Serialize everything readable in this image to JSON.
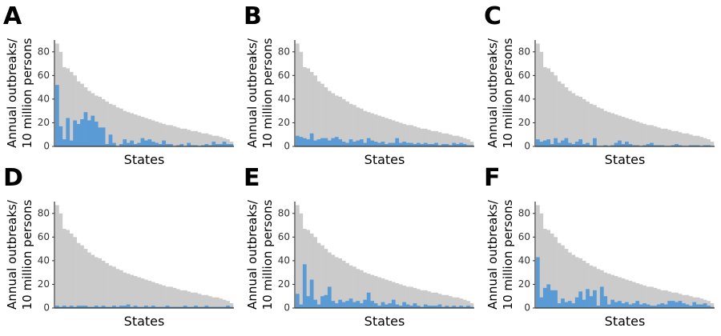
{
  "chart_data": [
    {
      "type": "bar",
      "panel": "A",
      "ylabel": [
        "Annual outbreaks/",
        "10 million persons"
      ],
      "xlabel": "States",
      "ylim": [
        0,
        90
      ],
      "yticks": [
        0,
        20,
        40,
        60,
        80
      ],
      "series": [
        {
          "color": "#cbcbcb",
          "values": [
            87,
            80,
            67,
            66,
            63,
            60,
            55,
            53,
            50,
            47,
            45,
            43,
            42,
            40,
            38,
            36,
            35,
            33,
            32,
            30,
            29,
            28,
            27,
            26,
            25,
            24,
            23,
            22,
            21,
            20,
            19,
            18,
            18,
            17,
            16,
            15,
            15,
            14,
            13,
            13,
            12,
            11,
            11,
            10,
            9,
            9,
            8,
            7,
            6,
            4
          ]
        },
        {
          "color": "#5b9bd5",
          "values": [
            52,
            17,
            6,
            24,
            5,
            22,
            19,
            23,
            29,
            22,
            26,
            21,
            16,
            16,
            2,
            10,
            3,
            0,
            2,
            6,
            3,
            5,
            2,
            3,
            7,
            5,
            6,
            4,
            3,
            2,
            5,
            2,
            2,
            0,
            1,
            2,
            0,
            3,
            1,
            1,
            0,
            1,
            2,
            1,
            4,
            2,
            2,
            4,
            2,
            2
          ]
        }
      ]
    },
    {
      "type": "bar",
      "panel": "B",
      "ylabel": [
        "Annual outbreaks/",
        "10 million persons"
      ],
      "xlabel": "States",
      "ylim": [
        0,
        90
      ],
      "yticks": [
        0,
        20,
        40,
        60,
        80
      ],
      "series": [
        {
          "color": "#cbcbcb",
          "values": [
            87,
            80,
            67,
            66,
            63,
            60,
            55,
            53,
            50,
            47,
            45,
            43,
            42,
            40,
            38,
            36,
            35,
            33,
            32,
            30,
            29,
            28,
            27,
            26,
            25,
            24,
            23,
            22,
            21,
            20,
            19,
            18,
            18,
            17,
            16,
            15,
            15,
            14,
            13,
            13,
            12,
            11,
            11,
            10,
            9,
            9,
            8,
            7,
            6,
            4
          ]
        },
        {
          "color": "#5b9bd5",
          "values": [
            9,
            8,
            7,
            6,
            11,
            5,
            6,
            7,
            7,
            5,
            7,
            8,
            6,
            4,
            3,
            6,
            4,
            5,
            6,
            3,
            7,
            5,
            4,
            3,
            4,
            2,
            3,
            3,
            7,
            3,
            4,
            3,
            3,
            2,
            3,
            2,
            3,
            2,
            2,
            3,
            1,
            2,
            2,
            1,
            3,
            2,
            3,
            2,
            1,
            1
          ]
        }
      ]
    },
    {
      "type": "bar",
      "panel": "C",
      "ylabel": [
        "Annual outbreaks/",
        "10 million persons"
      ],
      "xlabel": "States",
      "ylim": [
        0,
        90
      ],
      "yticks": [
        0,
        20,
        40,
        60,
        80
      ],
      "series": [
        {
          "color": "#cbcbcb",
          "values": [
            87,
            80,
            67,
            66,
            63,
            60,
            55,
            53,
            50,
            47,
            45,
            43,
            42,
            40,
            38,
            36,
            35,
            33,
            32,
            30,
            29,
            28,
            27,
            26,
            25,
            24,
            23,
            22,
            21,
            20,
            19,
            18,
            18,
            17,
            16,
            15,
            15,
            14,
            13,
            13,
            12,
            11,
            11,
            10,
            9,
            9,
            8,
            7,
            6,
            4
          ]
        },
        {
          "color": "#5b9bd5",
          "values": [
            6,
            4,
            5,
            6,
            2,
            7,
            3,
            5,
            7,
            3,
            2,
            4,
            6,
            2,
            3,
            1,
            7,
            0,
            0,
            1,
            0,
            1,
            3,
            5,
            2,
            4,
            2,
            1,
            1,
            0,
            1,
            2,
            3,
            1,
            1,
            1,
            0,
            0,
            1,
            2,
            1,
            0,
            0,
            1,
            1,
            1,
            0,
            1,
            1,
            0
          ]
        }
      ]
    },
    {
      "type": "bar",
      "panel": "D",
      "ylabel": [
        "Annual outbreaks/",
        "10 million persons"
      ],
      "xlabel": "States",
      "ylim": [
        0,
        90
      ],
      "yticks": [
        0,
        20,
        40,
        60,
        80
      ],
      "series": [
        {
          "color": "#cbcbcb",
          "values": [
            87,
            80,
            67,
            66,
            63,
            60,
            55,
            53,
            50,
            47,
            45,
            43,
            42,
            40,
            38,
            36,
            35,
            33,
            32,
            30,
            29,
            28,
            27,
            26,
            25,
            24,
            23,
            22,
            21,
            20,
            19,
            18,
            18,
            17,
            16,
            15,
            15,
            14,
            13,
            13,
            12,
            11,
            11,
            10,
            9,
            9,
            8,
            7,
            6,
            4
          ]
        },
        {
          "color": "#5b9bd5",
          "values": [
            2,
            1,
            2,
            1,
            2,
            1,
            2,
            2,
            2,
            1,
            1,
            2,
            1,
            2,
            1,
            1,
            2,
            1,
            2,
            2,
            3,
            1,
            2,
            1,
            1,
            2,
            1,
            2,
            1,
            1,
            1,
            2,
            1,
            1,
            1,
            1,
            2,
            1,
            1,
            2,
            1,
            1,
            2,
            1,
            1,
            1,
            1,
            1,
            2,
            1
          ]
        }
      ]
    },
    {
      "type": "bar",
      "panel": "E",
      "ylabel": [
        "Annual outbreaks/",
        "10 million persons"
      ],
      "xlabel": "States",
      "ylim": [
        0,
        90
      ],
      "yticks": [
        0,
        20,
        40,
        60,
        80
      ],
      "series": [
        {
          "color": "#cbcbcb",
          "values": [
            87,
            80,
            67,
            66,
            63,
            60,
            55,
            53,
            50,
            47,
            45,
            43,
            42,
            40,
            38,
            36,
            35,
            33,
            32,
            30,
            29,
            28,
            27,
            26,
            25,
            24,
            23,
            22,
            21,
            20,
            19,
            18,
            18,
            17,
            16,
            15,
            15,
            14,
            13,
            13,
            12,
            11,
            11,
            10,
            9,
            9,
            8,
            7,
            6,
            4
          ]
        },
        {
          "color": "#5b9bd5",
          "values": [
            12,
            3,
            37,
            10,
            24,
            7,
            3,
            10,
            11,
            18,
            6,
            4,
            7,
            5,
            6,
            8,
            5,
            6,
            4,
            7,
            13,
            6,
            4,
            2,
            5,
            3,
            4,
            7,
            3,
            2,
            5,
            3,
            2,
            4,
            2,
            1,
            3,
            2,
            2,
            2,
            3,
            1,
            2,
            1,
            2,
            1,
            2,
            1,
            2,
            1
          ]
        }
      ]
    },
    {
      "type": "bar",
      "panel": "F",
      "ylabel": [
        "Annual outbreaks/",
        "10 million persons"
      ],
      "xlabel": "States",
      "ylim": [
        0,
        90
      ],
      "yticks": [
        0,
        20,
        40,
        60,
        80
      ],
      "series": [
        {
          "color": "#cbcbcb",
          "values": [
            87,
            80,
            67,
            66,
            63,
            60,
            55,
            53,
            50,
            47,
            45,
            43,
            42,
            40,
            38,
            36,
            35,
            33,
            32,
            30,
            29,
            28,
            27,
            26,
            25,
            24,
            23,
            22,
            21,
            20,
            19,
            18,
            18,
            17,
            16,
            15,
            15,
            14,
            13,
            13,
            12,
            11,
            11,
            10,
            9,
            9,
            8,
            7,
            6,
            4
          ]
        },
        {
          "color": "#5b9bd5",
          "values": [
            43,
            9,
            17,
            20,
            15,
            15,
            4,
            8,
            5,
            6,
            4,
            9,
            14,
            7,
            16,
            10,
            15,
            2,
            18,
            10,
            3,
            7,
            5,
            6,
            4,
            5,
            3,
            4,
            6,
            3,
            4,
            3,
            2,
            2,
            3,
            4,
            3,
            6,
            6,
            5,
            6,
            4,
            3,
            2,
            5,
            3,
            3,
            4,
            2,
            1
          ]
        }
      ]
    }
  ]
}
